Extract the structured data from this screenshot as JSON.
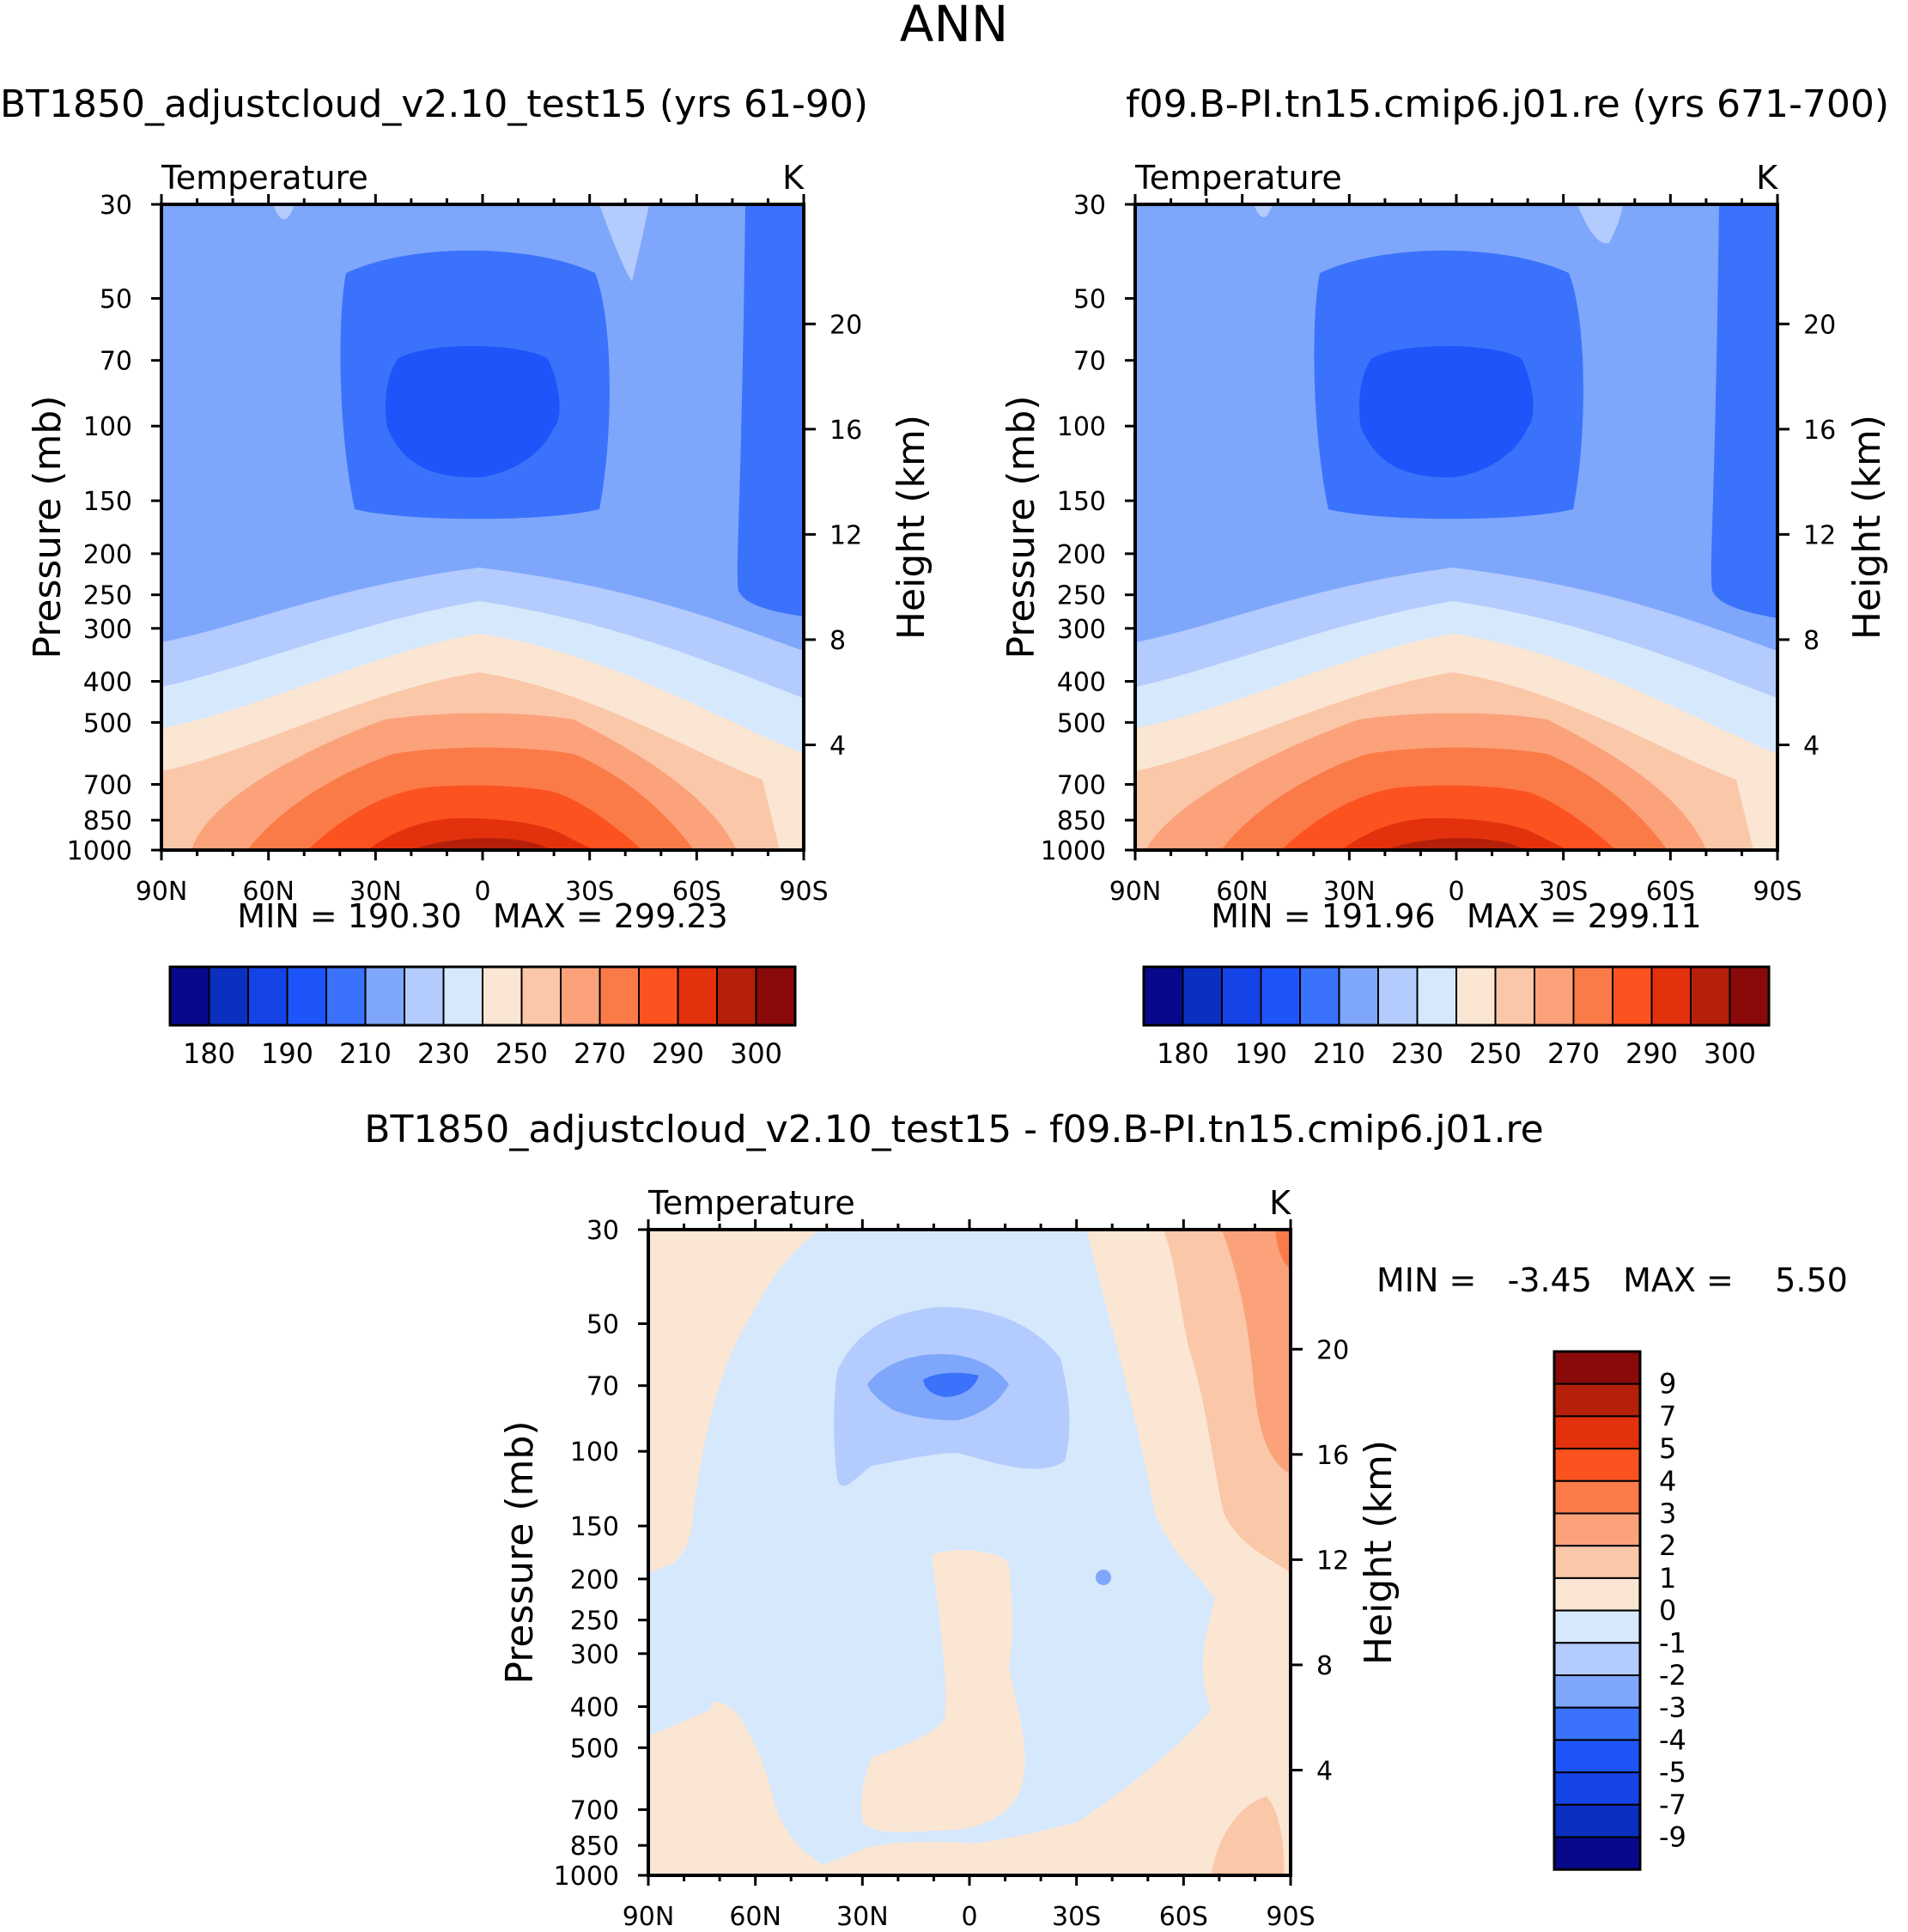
{
  "figure_title": "ANN",
  "colors": {
    "abs_palette": [
      "#08088c",
      "#0b2fbf",
      "#1443e6",
      "#1d55fa",
      "#3a72fb",
      "#7ea6fb",
      "#b3cbfd",
      "#d6e8fb",
      "#fbe6d4",
      "#fbc7a9",
      "#fba27b",
      "#fb7b48",
      "#fb5220",
      "#e2310c",
      "#b5200a",
      "#8a0a0a"
    ],
    "diff_palette": [
      "#08088c",
      "#0b2fbf",
      "#1443e6",
      "#1d55fa",
      "#3a72fb",
      "#7ea6fb",
      "#b3cbfd",
      "#d6e8fb",
      "#fbe6d4",
      "#fbc7a9",
      "#fba27b",
      "#fb7b48",
      "#fb5220",
      "#e2310c",
      "#b5200a",
      "#8a0a0a"
    ]
  },
  "panels": [
    {
      "title": "BT1850_adjustcloud_v2.10_test15 (yrs 61-90)",
      "variable": "Temperature",
      "units": "K",
      "stats": "MIN = 190.30   MAX = 299.23",
      "colorbar_labels": [
        "180",
        "190",
        "210",
        "230",
        "250",
        "270",
        "290",
        "300"
      ]
    },
    {
      "title": "f09.B-PI.tn15.cmip6.j01.re (yrs 671-700)",
      "variable": "Temperature",
      "units": "K",
      "stats": "MIN = 191.96   MAX = 299.11",
      "colorbar_labels": [
        "180",
        "190",
        "210",
        "230",
        "250",
        "270",
        "290",
        "300"
      ]
    }
  ],
  "diff_panel": {
    "title": "BT1850_adjustcloud_v2.10_test15 - f09.B-PI.tn15.cmip6.j01.re",
    "variable": "Temperature",
    "units": "K",
    "stats": "MIN =   -3.45   MAX =    5.50",
    "colorbar_labels": [
      "9",
      "7",
      "5",
      "4",
      "3",
      "2",
      "1",
      "0",
      "-1",
      "-2",
      "-3",
      "-4",
      "-5",
      "-7",
      "-9"
    ]
  },
  "chart_data": [
    {
      "type": "heatmap",
      "title": "BT1850_adjustcloud_v2.10_test15 (yrs 61-90)",
      "variable": "Temperature",
      "units": "K",
      "xlabel": "",
      "ylabel": "Pressure (mb)",
      "y2label": "Height (km)",
      "xticks": [
        "90N",
        "60N",
        "30N",
        "0",
        "30S",
        "60S",
        "90S"
      ],
      "yticks": [
        30,
        50,
        70,
        100,
        150,
        200,
        250,
        300,
        400,
        500,
        700,
        850,
        1000
      ],
      "y2ticks": [
        4,
        8,
        12,
        16,
        20
      ],
      "ylim": [
        1000,
        30
      ],
      "xlim": [
        90,
        -90
      ],
      "levels": [
        180,
        190,
        200,
        210,
        220,
        230,
        240,
        250,
        260,
        270,
        280,
        290,
        295,
        300
      ],
      "min": 190.3,
      "max": 299.23
    },
    {
      "type": "heatmap",
      "title": "f09.B-PI.tn15.cmip6.j01.re (yrs 671-700)",
      "variable": "Temperature",
      "units": "K",
      "xlabel": "",
      "ylabel": "Pressure (mb)",
      "y2label": "Height (km)",
      "xticks": [
        "90N",
        "60N",
        "30N",
        "0",
        "30S",
        "60S",
        "90S"
      ],
      "yticks": [
        30,
        50,
        70,
        100,
        150,
        200,
        250,
        300,
        400,
        500,
        700,
        850,
        1000
      ],
      "y2ticks": [
        4,
        8,
        12,
        16,
        20
      ],
      "ylim": [
        1000,
        30
      ],
      "xlim": [
        90,
        -90
      ],
      "levels": [
        180,
        190,
        200,
        210,
        220,
        230,
        240,
        250,
        260,
        270,
        280,
        290,
        295,
        300
      ],
      "min": 191.96,
      "max": 299.11
    },
    {
      "type": "heatmap",
      "title": "BT1850_adjustcloud_v2.10_test15 - f09.B-PI.tn15.cmip6.j01.re",
      "variable": "Temperature",
      "units": "K",
      "xlabel": "",
      "ylabel": "Pressure (mb)",
      "y2label": "Height (km)",
      "xticks": [
        "90N",
        "60N",
        "30N",
        "0",
        "30S",
        "60S",
        "90S"
      ],
      "yticks": [
        30,
        50,
        70,
        100,
        150,
        200,
        250,
        300,
        400,
        500,
        700,
        850,
        1000
      ],
      "y2ticks": [
        4,
        8,
        12,
        16,
        20
      ],
      "ylim": [
        1000,
        30
      ],
      "xlim": [
        90,
        -90
      ],
      "levels": [
        -9,
        -7,
        -5,
        -4,
        -3,
        -2,
        -1,
        0,
        1,
        2,
        3,
        4,
        5,
        7,
        9
      ],
      "min": -3.45,
      "max": 5.5
    }
  ]
}
